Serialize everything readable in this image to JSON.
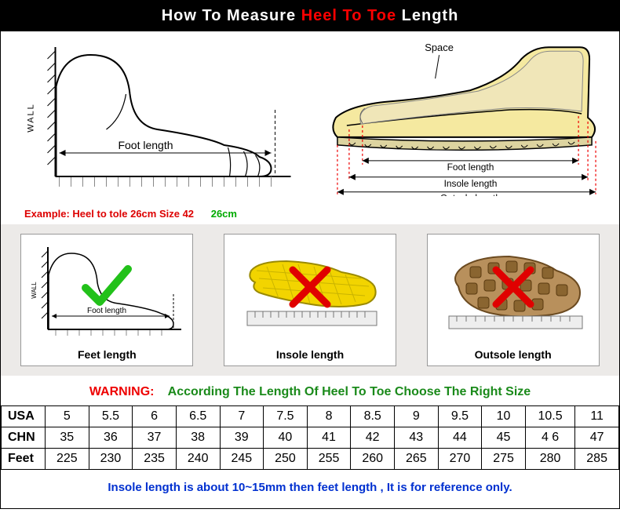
{
  "header": {
    "p1": "How To Measure ",
    "p2": "Heel To Toe ",
    "p3": "Length"
  },
  "leftDiagram": {
    "wall": "WALL",
    "footLength": "Foot length",
    "exampleRed": "Example: Heel to tole 26cm Size 42",
    "exampleGreen": "26cm"
  },
  "rightDiagram": {
    "space": "Space",
    "footLength": "Foot length",
    "insoleLength": "Insole length",
    "outsoleLength": "Outsole length"
  },
  "box1": {
    "wall": "WALL",
    "footLength": "Foot length",
    "label": "Feet length",
    "mark": "check",
    "markColor": "#22c11a"
  },
  "box2": {
    "label": "Insole length",
    "mark": "x",
    "markColor": "#e00000"
  },
  "box3": {
    "label": "Outsole length",
    "mark": "x",
    "markColor": "#e00000"
  },
  "warning": {
    "red": "WARNING:",
    "green": "According The Length Of Heel To Toe Choose The Right Size"
  },
  "table": {
    "colors": {
      "border": "#000000",
      "text": "#000000"
    },
    "rows": [
      {
        "label": "USA",
        "cells": [
          "5",
          "5.5",
          "6",
          "6.5",
          "7",
          "7.5",
          "8",
          "8.5",
          "9",
          "9.5",
          "10",
          "10.5",
          "11"
        ]
      },
      {
        "label": "CHN",
        "cells": [
          "35",
          "36",
          "37",
          "38",
          "39",
          "40",
          "41",
          "42",
          "43",
          "44",
          "45",
          "4 6",
          "47"
        ]
      },
      {
        "label": "Feet",
        "cells": [
          "225",
          "230",
          "235",
          "240",
          "245",
          "250",
          "255",
          "260",
          "265",
          "270",
          "275",
          "280",
          "285"
        ]
      }
    ]
  },
  "footnote": "Insole length is about 10~15mm then feet length , It is for reference only."
}
